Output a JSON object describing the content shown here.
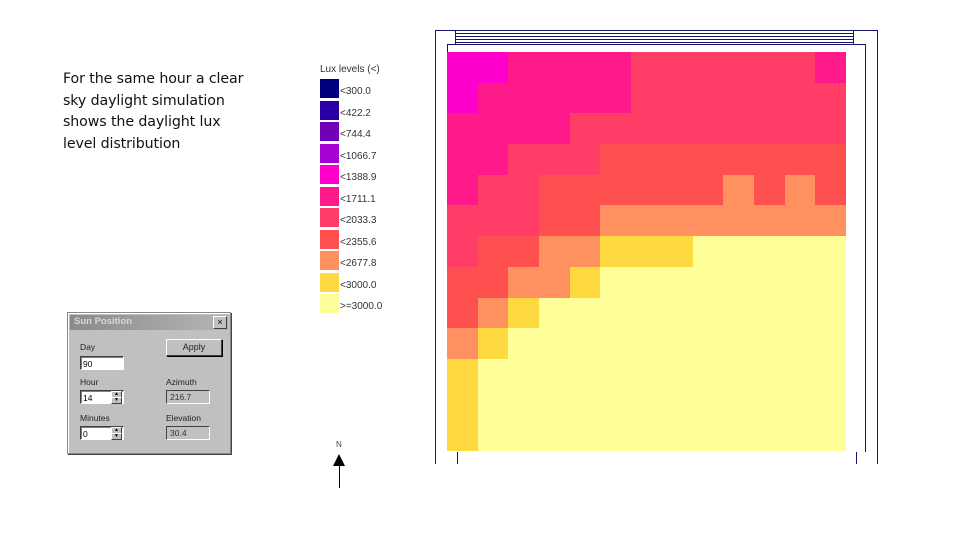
{
  "caption": {
    "line1": "For the same hour a clear",
    "line2": "sky daylight simulation",
    "line3": "shows the daylight lux",
    "line4": "level distribution"
  },
  "legend": {
    "title": "Lux levels (<)",
    "items": [
      {
        "label": "<300.0",
        "color": "#00007f"
      },
      {
        "label": "<422.2",
        "color": "#2a00a6"
      },
      {
        "label": "<744.4",
        "color": "#7000b8"
      },
      {
        "label": "<1066.7",
        "color": "#a600d2"
      },
      {
        "label": "<1388.9",
        "color": "#ff00cc"
      },
      {
        "label": "<1711.1",
        "color": "#ff1a8c"
      },
      {
        "label": "<2033.3",
        "color": "#ff3d66"
      },
      {
        "label": "<2355.6",
        "color": "#ff5050"
      },
      {
        "label": "<2677.8",
        "color": "#ff9060"
      },
      {
        "label": "<3000.0",
        "color": "#ffd940"
      },
      {
        "label": ">=3000.0",
        "color": "#ffff99"
      }
    ]
  },
  "compass": {
    "label": "N"
  },
  "grid": {
    "columns": 13,
    "rows": 13,
    "legend_index_matrix": [
      [
        4,
        4,
        5,
        5,
        5,
        5,
        6,
        6,
        6,
        6,
        6,
        6,
        5
      ],
      [
        4,
        5,
        5,
        5,
        5,
        5,
        6,
        6,
        6,
        6,
        6,
        6,
        6
      ],
      [
        5,
        5,
        5,
        5,
        6,
        6,
        6,
        6,
        6,
        6,
        6,
        6,
        6
      ],
      [
        5,
        5,
        6,
        6,
        6,
        7,
        7,
        7,
        7,
        7,
        7,
        7,
        7
      ],
      [
        5,
        6,
        6,
        7,
        7,
        7,
        7,
        7,
        7,
        8,
        7,
        8,
        7
      ],
      [
        6,
        6,
        6,
        7,
        7,
        8,
        8,
        8,
        8,
        8,
        8,
        8,
        8
      ],
      [
        6,
        7,
        7,
        8,
        8,
        9,
        9,
        9,
        10,
        10,
        10,
        10,
        10
      ],
      [
        7,
        7,
        8,
        8,
        9,
        10,
        10,
        10,
        10,
        10,
        10,
        10,
        10
      ],
      [
        7,
        8,
        9,
        10,
        10,
        10,
        10,
        10,
        10,
        10,
        10,
        10,
        10
      ],
      [
        8,
        9,
        10,
        10,
        10,
        10,
        10,
        10,
        10,
        10,
        10,
        10,
        10
      ],
      [
        9,
        10,
        10,
        10,
        10,
        10,
        10,
        10,
        10,
        10,
        10,
        10,
        10
      ],
      [
        9,
        10,
        10,
        10,
        10,
        10,
        10,
        10,
        10,
        10,
        10,
        10,
        10
      ],
      [
        9,
        10,
        10,
        10,
        10,
        10,
        10,
        10,
        10,
        10,
        10,
        10,
        10
      ]
    ]
  },
  "dialog": {
    "title": "Sun Position",
    "close_label": "×",
    "apply_label": "Apply",
    "day_label": "Day",
    "day_value": "90",
    "hour_label": "Hour",
    "hour_value": "14",
    "minutes_label": "Minutes",
    "minutes_value": "0",
    "azimuth_label": "Azimuth",
    "azimuth_value": "216.7",
    "elevation_label": "Elevation",
    "elevation_value": "30.4",
    "spin_up": "▲",
    "spin_down": "▼"
  }
}
